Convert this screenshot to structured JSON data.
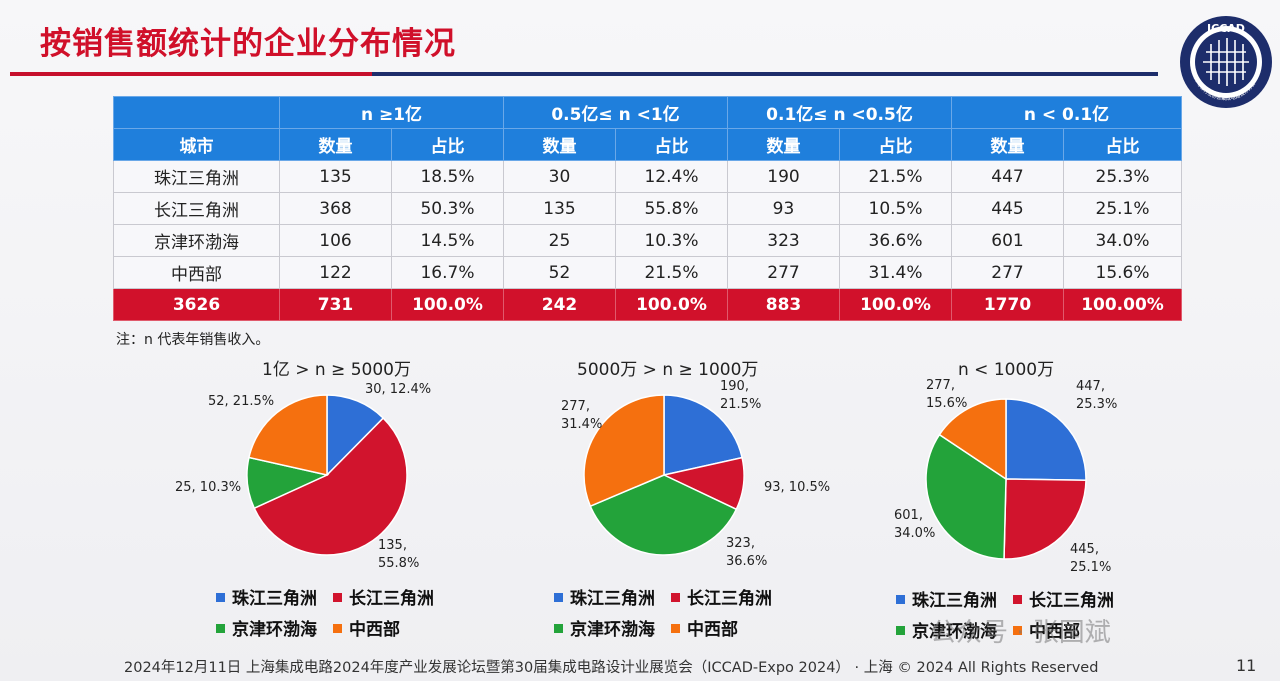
{
  "slide": {
    "title": "按销售额统计的企业分布情况",
    "logo_text": "ICCAD",
    "logo_ring_text": "中国半导体行业协会集成电路设计分会",
    "note": "注：n 代表年销售收入。",
    "footer": "2024年12月11日 上海集成电路2024年度产业发展论坛暨第30届集成电路设计业展览会（ICCAD-Expo 2024） · 上海 © 2024 All Rights Reserved",
    "page_number": "11",
    "watermark": "公众号 · 张国斌"
  },
  "table": {
    "group_headers": [
      "n ≥1亿",
      "0.5亿≤ n <1亿",
      "0.1亿≤ n <0.5亿",
      "n < 0.1亿"
    ],
    "col_headers": [
      "城市",
      "数量",
      "占比",
      "数量",
      "占比",
      "数量",
      "占比",
      "数量",
      "占比"
    ],
    "rows": [
      [
        "珠江三角洲",
        "135",
        "18.5%",
        "30",
        "12.4%",
        "190",
        "21.5%",
        "447",
        "25.3%"
      ],
      [
        "长江三角洲",
        "368",
        "50.3%",
        "135",
        "55.8%",
        "93",
        "10.5%",
        "445",
        "25.1%"
      ],
      [
        "京津环渤海",
        "106",
        "14.5%",
        "25",
        "10.3%",
        "323",
        "36.6%",
        "601",
        "34.0%"
      ],
      [
        "中西部",
        "122",
        "16.7%",
        "52",
        "21.5%",
        "277",
        "31.4%",
        "277",
        "15.6%"
      ]
    ],
    "total_row": [
      "3626",
      "731",
      "100.0%",
      "242",
      "100.0%",
      "883",
      "100.0%",
      "1770",
      "100.00%"
    ]
  },
  "legend": {
    "items": [
      "珠江三角洲",
      "长江三角洲",
      "京津环渤海",
      "中西部"
    ]
  },
  "colors": {
    "blue": "#2e6fd6",
    "red": "#d1142d",
    "green": "#23a33a",
    "orange": "#f5700f",
    "header_blue": "#1f7fdc",
    "title_red": "#d0102a",
    "navy": "#1d2d6b"
  },
  "chart_data": [
    {
      "type": "pie",
      "title": "1亿 > n ≥ 5000万",
      "categories": [
        "珠江三角洲",
        "长江三角洲",
        "京津环渤海",
        "中西部"
      ],
      "values": [
        30,
        135,
        25,
        52
      ],
      "labels": [
        [
          "30, 12.4%"
        ],
        [
          "135,",
          "55.8%"
        ],
        [
          "25, 10.3%"
        ],
        [
          "52, 21.5%"
        ]
      ]
    },
    {
      "type": "pie",
      "title": "5000万 > n ≥ 1000万",
      "categories": [
        "珠江三角洲",
        "长江三角洲",
        "京津环渤海",
        "中西部"
      ],
      "values": [
        190,
        93,
        323,
        277
      ],
      "labels": [
        [
          "190,",
          "21.5%"
        ],
        [
          "93, 10.5%"
        ],
        [
          "323,",
          "36.6%"
        ],
        [
          "277,",
          "31.4%"
        ]
      ]
    },
    {
      "type": "pie",
      "title": "n < 1000万",
      "categories": [
        "珠江三角洲",
        "长江三角洲",
        "京津环渤海",
        "中西部"
      ],
      "values": [
        447,
        445,
        601,
        277
      ],
      "labels": [
        [
          "447,",
          "25.3%"
        ],
        [
          "445,",
          "25.1%"
        ],
        [
          "601,",
          "34.0%"
        ],
        [
          "277,",
          "15.6%"
        ]
      ]
    }
  ]
}
